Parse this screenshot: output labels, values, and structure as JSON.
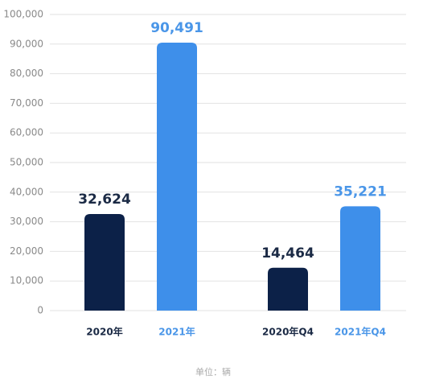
{
  "chart_data": {
    "type": "bar",
    "categories": [
      "2020年",
      "2021年",
      "2020年Q4",
      "2021年Q4"
    ],
    "values": [
      32624,
      90491,
      14464,
      35221
    ],
    "value_labels": [
      "32,624",
      "90,491",
      "14,464",
      "35,221"
    ],
    "colors": [
      "#0c2148",
      "#3e8fea",
      "#0c2148",
      "#3e8fea"
    ],
    "ylim": [
      0,
      100000
    ],
    "yticks": [
      0,
      {
        "value": 10000,
        "label": "10,000"
      },
      {
        "value": 20000,
        "label": "20,000"
      },
      {
        "value": 30000,
        "label": "30,000"
      },
      {
        "value": 40000,
        "label": "40,000"
      },
      {
        "value": 50000,
        "label": "50,000"
      },
      {
        "value": 60000,
        "label": "60,000"
      },
      {
        "value": 70000,
        "label": "70,000"
      },
      {
        "value": 80000,
        "label": "80,000"
      },
      {
        "value": 90000,
        "label": "90,000"
      },
      {
        "value": 100000,
        "label": "100,000"
      }
    ],
    "grid": true,
    "footnote": "单位：辆"
  }
}
